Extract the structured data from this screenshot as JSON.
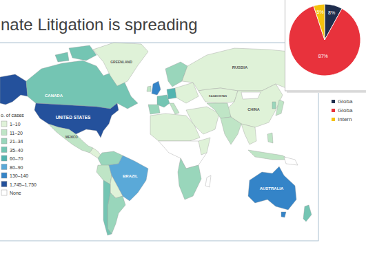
{
  "title": "nate Litigation is spreading",
  "map": {
    "legend_title": "o. of cases",
    "classes": [
      {
        "label": "1–10",
        "color": "#dff2d8"
      },
      {
        "label": "11–20",
        "color": "#bfe5c6"
      },
      {
        "label": "21–34",
        "color": "#99d6bb"
      },
      {
        "label": "35–40",
        "color": "#74c5b3"
      },
      {
        "label": "60–70",
        "color": "#52b4b0"
      },
      {
        "label": "80–90",
        "color": "#5aa9d8"
      },
      {
        "label": "130–140",
        "color": "#3484c8"
      },
      {
        "label": "1,745–1,750",
        "color": "#24519c"
      },
      {
        "label": "None",
        "color": "#ffffff"
      }
    ],
    "regions": [
      {
        "label": null,
        "cases": "1,745–1,750"
      },
      {
        "label": "CANADA",
        "cases": "35–40"
      },
      {
        "label": null,
        "cases": "35–40"
      },
      {
        "label": null,
        "cases": "35–40"
      },
      {
        "label": "GREENLAND",
        "cases": "1–10"
      },
      {
        "label": "UNITED STATES",
        "cases": "1,745–1,750"
      },
      {
        "label": "MEXICO",
        "cases": "11–20"
      },
      {
        "label": null,
        "cases": "1–10"
      },
      {
        "label": null,
        "cases": "21–34"
      },
      {
        "label": null,
        "cases": "11–20"
      },
      {
        "label": "BRAZIL",
        "cases": "80–90"
      },
      {
        "label": null,
        "cases": "1–10"
      },
      {
        "label": null,
        "cases": "21–34"
      },
      {
        "label": null,
        "cases": "35–40"
      },
      {
        "label": null,
        "cases": "130–140"
      },
      {
        "label": null,
        "cases": "11–20"
      },
      {
        "label": null,
        "cases": "35–40"
      },
      {
        "label": null,
        "cases": "21–34"
      },
      {
        "label": null,
        "cases": "60–70"
      },
      {
        "label": null,
        "cases": "21–34"
      },
      {
        "label": null,
        "cases": "11–20"
      },
      {
        "label": null,
        "cases": "1–10"
      },
      {
        "label": "RUSSIA",
        "cases": "1–10"
      },
      {
        "label": "KAZAKHSTAN",
        "cases": "1–10"
      },
      {
        "label": "CHINA",
        "cases": "1–10"
      },
      {
        "label": null,
        "cases": "None"
      },
      {
        "label": null,
        "cases": "1–10"
      },
      {
        "label": null,
        "cases": "11–20"
      },
      {
        "label": null,
        "cases": "11–20"
      },
      {
        "label": null,
        "cases": "1–10"
      },
      {
        "label": null,
        "cases": "11–20"
      },
      {
        "label": null,
        "cases": "11–20"
      },
      {
        "label": null,
        "cases": "11–20"
      },
      {
        "label": null,
        "cases": "21–34"
      },
      {
        "label": null,
        "cases": "1–10"
      },
      {
        "label": null,
        "cases": "None"
      },
      {
        "label": null,
        "cases": "21–34"
      },
      {
        "label": null,
        "cases": "1–10"
      },
      {
        "label": null,
        "cases": "None"
      },
      {
        "label": "AUSTRALIA",
        "cases": "130–140"
      },
      {
        "label": null,
        "cases": "130–140"
      },
      {
        "label": null,
        "cases": "35–40"
      },
      {
        "label": null,
        "cases": "None"
      }
    ]
  },
  "chart_data": {
    "type": "pie",
    "categories": [
      "Globa",
      "Globa",
      "Intern"
    ],
    "values": [
      8,
      87,
      5
    ],
    "value_labels": [
      "8%",
      "87%",
      "5%"
    ],
    "colors": [
      "#1f2d4d",
      "#e8323c",
      "#f4c20d"
    ],
    "data_labels": true,
    "legend": "bottom"
  }
}
